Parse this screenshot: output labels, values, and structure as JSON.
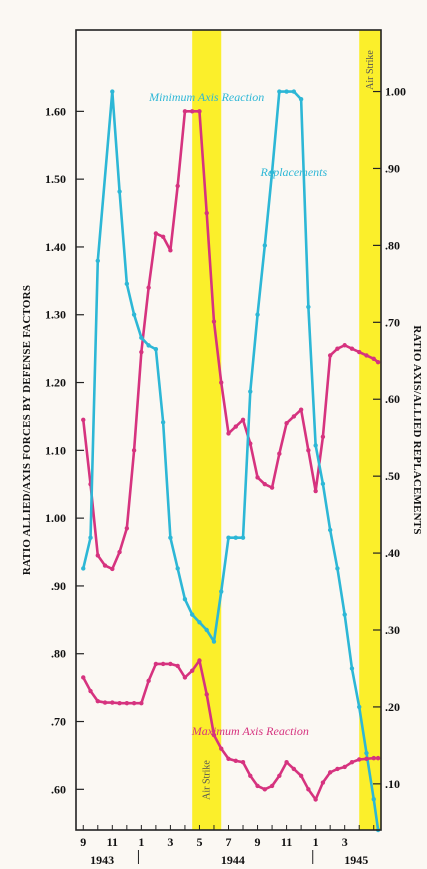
{
  "chart_data": {
    "type": "line",
    "ylabel_left": "RATIO ALLIED/AXIS FORCES BY DEFENSE FACTORS",
    "ylabel_right": "RATIO AXIS/ALLIED REPLACEMENTS",
    "ylim_left": [
      0.54,
      1.72
    ],
    "ylim_right": [
      0.04,
      1.08
    ],
    "xlim": [
      8.5,
      29.5
    ],
    "yticks_left": [
      {
        "v": 0.6,
        "label": ".60"
      },
      {
        "v": 0.7,
        "label": ".70"
      },
      {
        "v": 0.8,
        "label": ".80"
      },
      {
        "v": 0.9,
        "label": ".90"
      },
      {
        "v": 1.0,
        "label": "1.00"
      },
      {
        "v": 1.1,
        "label": "1.10"
      },
      {
        "v": 1.2,
        "label": "1.20"
      },
      {
        "v": 1.3,
        "label": "1.30"
      },
      {
        "v": 1.4,
        "label": "1.40"
      },
      {
        "v": 1.5,
        "label": "1.50"
      },
      {
        "v": 1.6,
        "label": "1.60"
      }
    ],
    "yticks_right": [
      {
        "v": 0.1,
        "label": ".10"
      },
      {
        "v": 0.2,
        "label": ".20"
      },
      {
        "v": 0.3,
        "label": ".30"
      },
      {
        "v": 0.4,
        "label": ".40"
      },
      {
        "v": 0.5,
        "label": ".50"
      },
      {
        "v": 0.6,
        "label": ".60"
      },
      {
        "v": 0.7,
        "label": ".70"
      },
      {
        "v": 0.8,
        "label": ".80"
      },
      {
        "v": 0.9,
        "label": ".90"
      },
      {
        "v": 1.0,
        "label": "1.00"
      }
    ],
    "xticks": [
      {
        "x": 9,
        "label": "9"
      },
      {
        "x": 11,
        "label": "11"
      },
      {
        "x": 13,
        "label": "1"
      },
      {
        "x": 15,
        "label": "3"
      },
      {
        "x": 17,
        "label": "5"
      },
      {
        "x": 19,
        "label": "7"
      },
      {
        "x": 21,
        "label": "9"
      },
      {
        "x": 23,
        "label": "11"
      },
      {
        "x": 25,
        "label": "1"
      },
      {
        "x": 27,
        "label": "3"
      }
    ],
    "years": [
      {
        "x": 10.3,
        "label": "1943"
      },
      {
        "x": 19.3,
        "label": "1944"
      },
      {
        "x": 27.8,
        "label": "1945"
      }
    ],
    "year_dividers": [
      12.8,
      24.8
    ],
    "bands": [
      {
        "from": 16.5,
        "to": 18.5,
        "label": "Air Strike",
        "label_pos": "bottom"
      },
      {
        "from": 28.0,
        "to": 29.5,
        "label": "Air Strike",
        "label_pos": "top"
      }
    ],
    "series": [
      {
        "name": "Minimum Axis Reaction",
        "axis": "left",
        "color": "#d6337f",
        "x": [
          9,
          9.5,
          10,
          10.5,
          11,
          11.5,
          12,
          12.5,
          13,
          13.5,
          14,
          14.5,
          15,
          15.5,
          16,
          16.5,
          17,
          17.5,
          18,
          18.5,
          19,
          19.5,
          20,
          20.5,
          21,
          21.5,
          22,
          22.5,
          23,
          23.5,
          24,
          24.5,
          25,
          25.5,
          26,
          26.5,
          27,
          27.5,
          28,
          28.5,
          29,
          29.3
        ],
        "y": [
          1.145,
          1.05,
          0.945,
          0.93,
          0.925,
          0.95,
          0.985,
          1.1,
          1.245,
          1.34,
          1.42,
          1.415,
          1.395,
          1.49,
          1.6,
          1.6,
          1.6,
          1.45,
          1.29,
          1.2,
          1.125,
          1.135,
          1.145,
          1.11,
          1.06,
          1.05,
          1.045,
          1.095,
          1.14,
          1.15,
          1.16,
          1.1,
          1.04,
          1.12,
          1.24,
          1.25,
          1.255,
          1.25,
          1.245,
          1.24,
          1.235,
          1.23
        ]
      },
      {
        "name": "Replacements",
        "axis": "right",
        "color": "#2db7d6",
        "x": [
          9,
          9.5,
          10,
          11,
          11.5,
          12,
          12.5,
          13,
          13.5,
          14,
          14.5,
          15,
          15.5,
          16,
          16.5,
          17,
          17.5,
          18,
          18.5,
          19,
          19.5,
          20,
          20.5,
          21,
          21.5,
          22,
          22.5,
          23,
          23.5,
          24,
          24.5,
          25,
          25.5,
          26,
          26.5,
          27,
          27.5,
          28,
          28.5,
          29,
          29.3
        ],
        "y": [
          0.38,
          0.42,
          0.78,
          1.0,
          0.87,
          0.75,
          0.71,
          0.68,
          0.67,
          0.665,
          0.57,
          0.42,
          0.38,
          0.34,
          0.32,
          0.31,
          0.3,
          0.285,
          0.35,
          0.42,
          0.42,
          0.42,
          0.61,
          0.71,
          0.8,
          0.895,
          1.0,
          1.0,
          1.0,
          0.99,
          0.72,
          0.54,
          0.49,
          0.43,
          0.38,
          0.32,
          0.25,
          0.2,
          0.14,
          0.08,
          0.04
        ]
      },
      {
        "name": "Maximum Axis Reaction",
        "axis": "left",
        "color": "#d6337f",
        "x": [
          9,
          9.5,
          10,
          10.5,
          11,
          11.5,
          12,
          12.5,
          13,
          13.5,
          14,
          14.5,
          15,
          15.5,
          16,
          16.5,
          17,
          17.5,
          18,
          18.5,
          19,
          19.5,
          20,
          20.5,
          21,
          21.5,
          22,
          22.5,
          23,
          23.5,
          24,
          24.5,
          25,
          25.5,
          26,
          26.5,
          27,
          27.5,
          28,
          28.5,
          29,
          29.3
        ],
        "y": [
          0.765,
          0.745,
          0.73,
          0.728,
          0.728,
          0.727,
          0.727,
          0.727,
          0.727,
          0.76,
          0.785,
          0.785,
          0.785,
          0.782,
          0.765,
          0.775,
          0.79,
          0.74,
          0.68,
          0.66,
          0.645,
          0.642,
          0.64,
          0.62,
          0.605,
          0.6,
          0.605,
          0.62,
          0.64,
          0.63,
          0.62,
          0.6,
          0.585,
          0.61,
          0.625,
          0.63,
          0.633,
          0.64,
          0.644,
          0.645,
          0.646,
          0.646
        ]
      }
    ],
    "annotations": [
      {
        "text": "Minimum Axis Reaction",
        "color": "#2db7d6",
        "x": 17.5,
        "y_left": 1.615
      },
      {
        "text": "Replacements",
        "color": "#2db7d6",
        "x": 23.5,
        "y_left": 1.505
      },
      {
        "text": "Maximum Axis Reaction",
        "color": "#d6337f",
        "x": 20.5,
        "y_left": 0.68
      }
    ]
  }
}
